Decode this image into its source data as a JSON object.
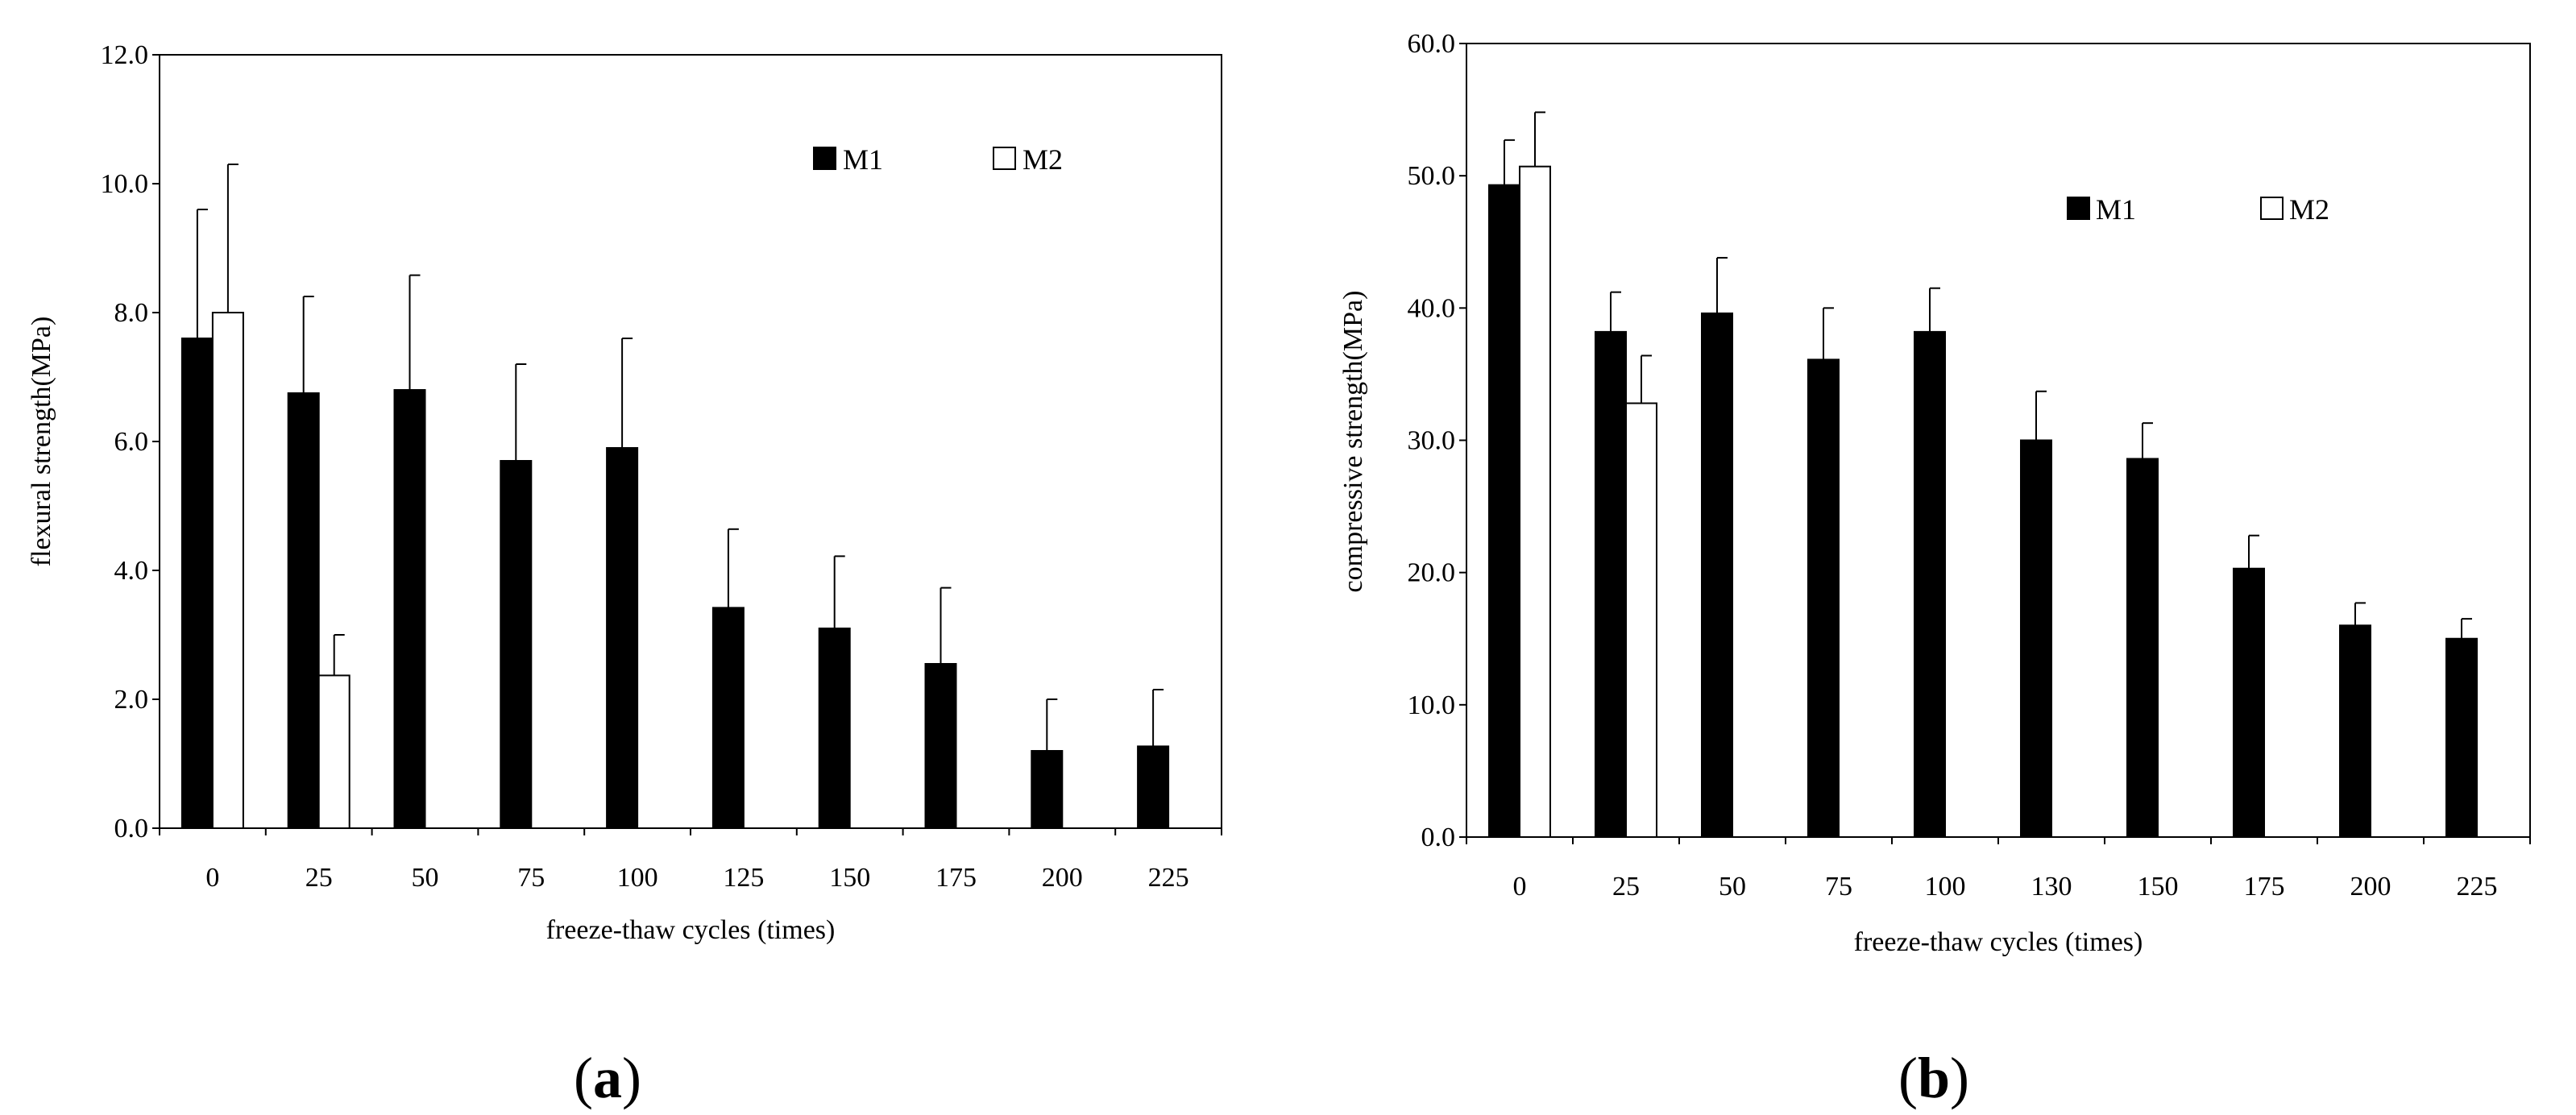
{
  "chart_data": [
    {
      "type": "bar",
      "panel_label": "a",
      "categories": [
        "0",
        "25",
        "50",
        "75",
        "100",
        "125",
        "150",
        "175",
        "200",
        "225"
      ],
      "series": [
        {
          "name": "M1",
          "color": "#000000",
          "values": [
            7.6,
            6.75,
            6.8,
            5.7,
            5.9,
            3.42,
            3.1,
            2.55,
            1.2,
            1.27
          ],
          "errors": [
            2.0,
            1.5,
            1.78,
            1.5,
            1.7,
            1.22,
            1.12,
            1.18,
            0.8,
            0.88
          ]
        },
        {
          "name": "M2",
          "color": "#ffffff",
          "values": [
            8.0,
            2.37,
            null,
            null,
            null,
            null,
            null,
            null,
            null,
            null
          ],
          "errors": [
            2.3,
            0.63,
            null,
            null,
            null,
            null,
            null,
            null,
            null,
            null
          ]
        }
      ],
      "title": "",
      "xlabel": "freeze-thaw cycles (times)",
      "ylabel": "flexural strength(MPa)",
      "ylim": [
        0,
        12
      ],
      "yticks": [
        "0.0",
        "2.0",
        "4.0",
        "6.0",
        "8.0",
        "10.0",
        "12.0"
      ],
      "legend": "top-right"
    },
    {
      "type": "bar",
      "panel_label": "b",
      "categories": [
        "0",
        "25",
        "50",
        "75",
        "100",
        "130",
        "150",
        "175",
        "200",
        "225"
      ],
      "series": [
        {
          "name": "M1",
          "color": "#000000",
          "values": [
            49.3,
            38.2,
            39.6,
            36.1,
            38.2,
            30.0,
            28.6,
            20.3,
            16.0,
            15.0
          ],
          "errors": [
            3.4,
            3.0,
            4.2,
            3.9,
            3.3,
            3.7,
            2.7,
            2.5,
            1.7,
            1.5
          ]
        },
        {
          "name": "M2",
          "color": "#ffffff",
          "values": [
            50.7,
            32.8,
            null,
            null,
            null,
            null,
            null,
            null,
            null,
            null
          ],
          "errors": [
            4.1,
            3.6,
            null,
            null,
            null,
            null,
            null,
            null,
            null,
            null
          ]
        }
      ],
      "title": "",
      "xlabel": "freeze-thaw cycles (times)",
      "ylabel": "compressive strength(MPa)",
      "ylim": [
        0,
        60
      ],
      "yticks": [
        "0.0",
        "10.0",
        "20.0",
        "30.0",
        "40.0",
        "50.0",
        "60.0"
      ],
      "legend": "top-right"
    }
  ]
}
